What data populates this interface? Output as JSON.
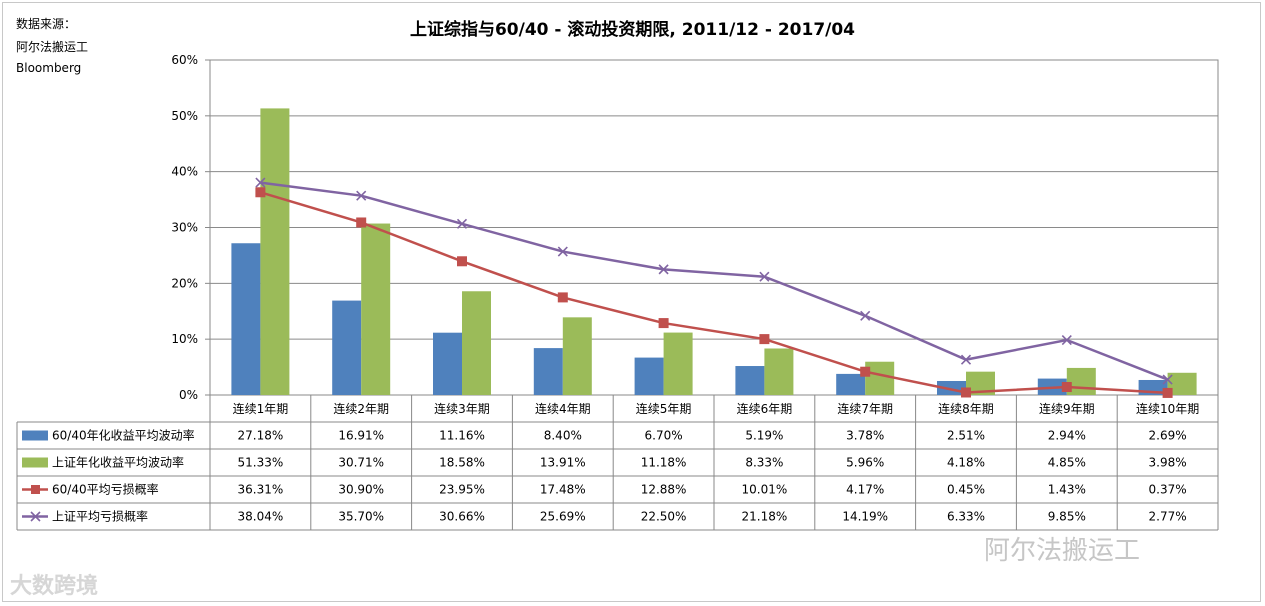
{
  "source": {
    "line1": "数据来源：",
    "line2": "阿尔法搬运工",
    "line3": "Bloomberg"
  },
  "watermarks": {
    "left": "大数跨境",
    "right": "阿尔法搬运工"
  },
  "chart_data": {
    "type": "bar",
    "title": "上证综指与60/40 - 滚动投资期限, 2011/12 - 2017/04",
    "categories": [
      "连续1年期",
      "连续2年期",
      "连续3年期",
      "连续4年期",
      "连续5年期",
      "连续6年期",
      "连续7年期",
      "连续8年期",
      "连续9年期",
      "连续10年期"
    ],
    "yticks": [
      "0%",
      "10%",
      "20%",
      "30%",
      "40%",
      "50%",
      "60%"
    ],
    "ylim": [
      0,
      60
    ],
    "grid": true,
    "legend": "data-table-left",
    "series": [
      {
        "name": "60/40年化收益平均波动率",
        "kind": "bar",
        "color": "#4f81bd",
        "values": [
          27.18,
          16.91,
          11.16,
          8.4,
          6.7,
          5.19,
          3.78,
          2.51,
          2.94,
          2.69
        ],
        "labels": [
          "27.18%",
          "16.91%",
          "11.16%",
          "8.40%",
          "6.70%",
          "5.19%",
          "3.78%",
          "2.51%",
          "2.94%",
          "2.69%"
        ]
      },
      {
        "name": "上证年化收益平均波动率",
        "kind": "bar",
        "color": "#9bbb59",
        "values": [
          51.33,
          30.71,
          18.58,
          13.91,
          11.18,
          8.33,
          5.96,
          4.18,
          4.85,
          3.98
        ],
        "labels": [
          "51.33%",
          "30.71%",
          "18.58%",
          "13.91%",
          "11.18%",
          "8.33%",
          "5.96%",
          "4.18%",
          "4.85%",
          "3.98%"
        ]
      },
      {
        "name": "60/40平均亏损概率",
        "kind": "line",
        "marker": "square",
        "color": "#c0504d",
        "values": [
          36.31,
          30.9,
          23.95,
          17.48,
          12.88,
          10.01,
          4.17,
          0.45,
          1.43,
          0.37
        ],
        "labels": [
          "36.31%",
          "30.90%",
          "23.95%",
          "17.48%",
          "12.88%",
          "10.01%",
          "4.17%",
          "0.45%",
          "1.43%",
          "0.37%"
        ]
      },
      {
        "name": "上证平均亏损概率",
        "kind": "line",
        "marker": "x",
        "color": "#8064a2",
        "values": [
          38.04,
          35.7,
          30.66,
          25.69,
          22.5,
          21.18,
          14.19,
          6.33,
          9.85,
          2.77
        ],
        "labels": [
          "38.04%",
          "35.70%",
          "30.66%",
          "25.69%",
          "22.50%",
          "21.18%",
          "14.19%",
          "6.33%",
          "9.85%",
          "2.77%"
        ]
      }
    ]
  }
}
